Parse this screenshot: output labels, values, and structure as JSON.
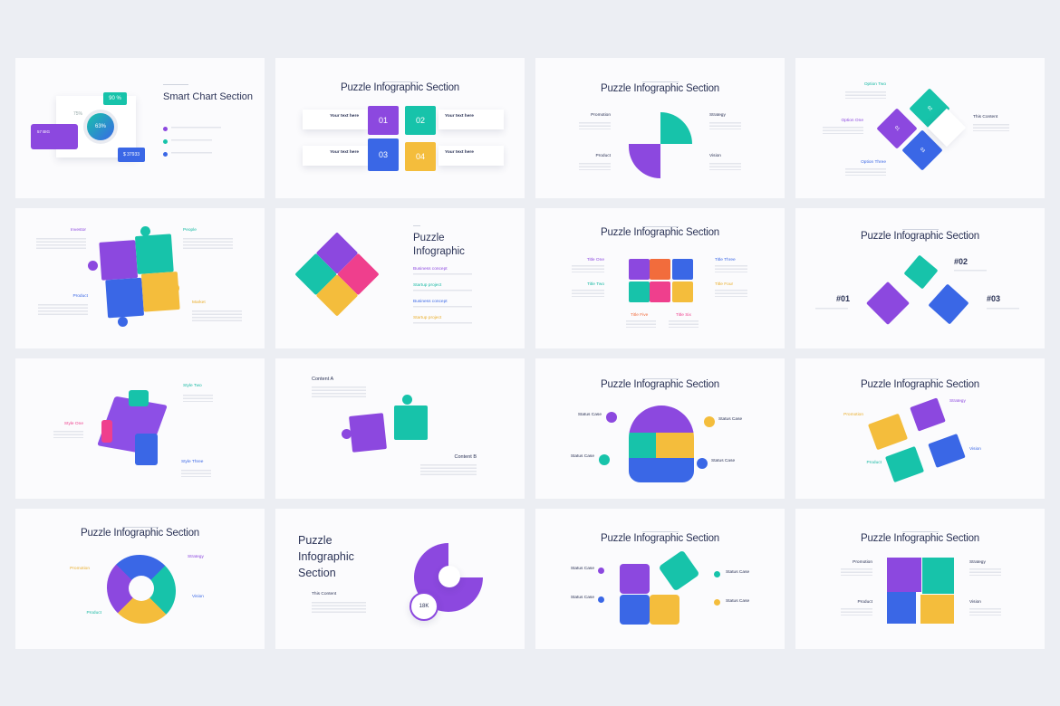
{
  "colors": {
    "purple": "#8c48df",
    "teal": "#17c3aa",
    "blue": "#3a67e6",
    "yellow": "#f4bd3c",
    "pink": "#ef3f8d",
    "orange": "#f26c3c",
    "title": "#2b3356"
  },
  "slides": [
    {
      "title": "Smart Chart Section",
      "ring": "63%",
      "teal_box": "90 %",
      "side_pct": "75%",
      "purple_box": "57 BIG",
      "blue_box": "$ 37933"
    },
    {
      "title": "Puzzle Infographic Section",
      "pieces": [
        "01",
        "02",
        "03",
        "04"
      ],
      "labels": [
        "Your text here",
        "Your text here",
        "Your text here",
        "Your text here"
      ]
    },
    {
      "title": "Puzzle Infographic Section",
      "labels": [
        "Promotion",
        "Strategy",
        "Product",
        "Vision"
      ]
    },
    {
      "labels": [
        "Option Two",
        "Option One",
        "Option Three",
        "This Content"
      ],
      "pieces": [
        "02",
        "01",
        "03"
      ]
    },
    {
      "labels": [
        "Investor",
        "People",
        "Product",
        "Market"
      ]
    },
    {
      "title_line1": "Puzzle",
      "title_line2": "Infographic",
      "items": [
        "Business concept",
        "Startup project",
        "Business concept",
        "Startup project"
      ]
    },
    {
      "title": "Puzzle Infographic Section",
      "labels": [
        "Title One",
        "Title Two",
        "Title Three",
        "Title Four",
        "Title Five",
        "Title Six"
      ]
    },
    {
      "title": "Puzzle Infographic Section",
      "labels": [
        "#01",
        "#02",
        "#03"
      ]
    },
    {
      "labels": [
        "Style One",
        "Style Two",
        "Style Three"
      ]
    },
    {
      "labels": [
        "Content A",
        "Content B"
      ]
    },
    {
      "title": "Puzzle Infographic Section",
      "labels": [
        "Status Case",
        "Status Case",
        "Status Case",
        "Status Case"
      ]
    },
    {
      "title": "Puzzle Infographic Section",
      "labels": [
        "Promotion",
        "Strategy",
        "Product",
        "Vision"
      ]
    },
    {
      "title": "Puzzle Infographic Section",
      "labels": [
        "Promotion",
        "Strategy",
        "Product",
        "Vision"
      ]
    },
    {
      "title_lines": [
        "Puzzle",
        "Infographic",
        "Section"
      ],
      "subtitle": "This Content",
      "stat": "18K"
    },
    {
      "title": "Puzzle Infographic Section",
      "labels": [
        "Status Case",
        "Status Case",
        "Status Case",
        "Status Case"
      ]
    },
    {
      "title": "Puzzle Infographic Section",
      "labels": [
        "Promotion",
        "Strategy",
        "Product",
        "Vision"
      ]
    }
  ]
}
